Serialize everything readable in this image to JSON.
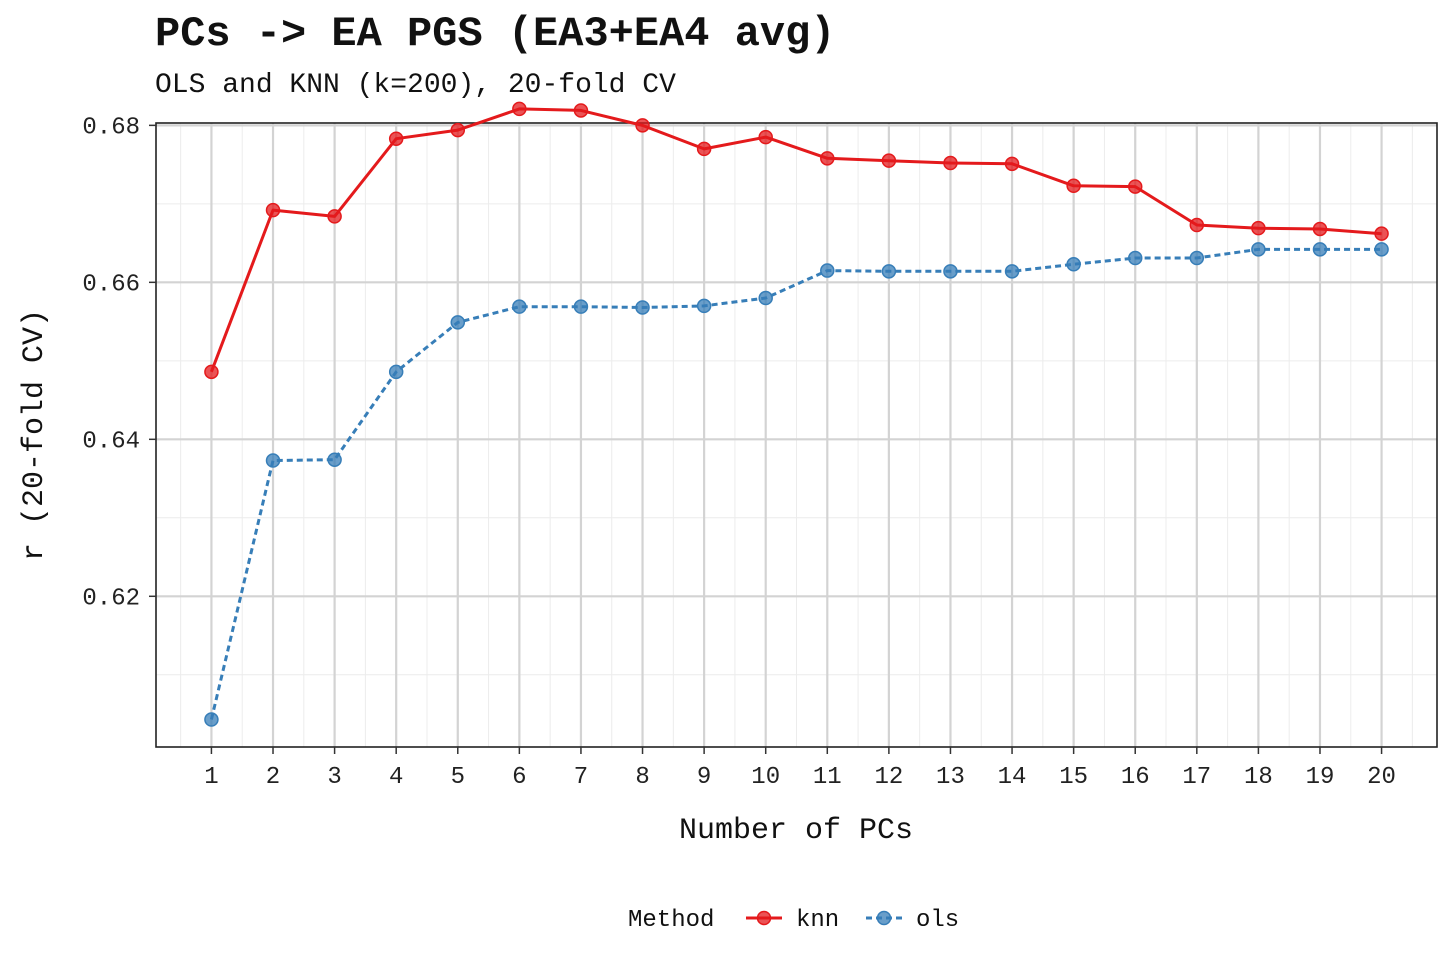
{
  "title": "PCs -> EA PGS (EA3+EA4 avg)",
  "subtitle": "OLS and KNN (k=200), 20-fold CV",
  "chart_data": {
    "type": "line",
    "x": [
      1,
      2,
      3,
      4,
      5,
      6,
      7,
      8,
      9,
      10,
      11,
      12,
      13,
      14,
      15,
      16,
      17,
      18,
      19,
      20
    ],
    "x_tick_labels": [
      "1",
      "2",
      "3",
      "4",
      "5",
      "6",
      "7",
      "8",
      "9",
      "10",
      "11",
      "12",
      "13",
      "14",
      "15",
      "16",
      "17",
      "18",
      "19",
      "20"
    ],
    "xlabel": "Number of PCs",
    "ylabel": "r (20-fold CV)",
    "ylim": [
      0.6008,
      0.6803
    ],
    "y_ticks": [
      0.62,
      0.64,
      0.66,
      0.68
    ],
    "y_tick_labels": [
      "0.62",
      "0.64",
      "0.66",
      "0.68"
    ],
    "grid": true,
    "legend": {
      "title": "Method",
      "placement": "bottom"
    },
    "series": [
      {
        "name": "knn",
        "color": "#e41a1c",
        "line": "solid",
        "values": [
          0.6486,
          0.6692,
          0.6684,
          0.6783,
          0.6794,
          0.6821,
          0.6819,
          0.68,
          0.677,
          0.6785,
          0.6758,
          0.6755,
          0.6752,
          0.6751,
          0.6723,
          0.6722,
          0.6673,
          0.6669,
          0.6668,
          0.6662
        ]
      },
      {
        "name": "ols",
        "color": "#377eb8",
        "line": "dashed",
        "values": [
          0.6043,
          0.6373,
          0.6374,
          0.6486,
          0.6549,
          0.6569,
          0.6569,
          0.6568,
          0.657,
          0.658,
          0.6615,
          0.6614,
          0.6614,
          0.6614,
          0.6623,
          0.6631,
          0.6631,
          0.6642,
          0.6642,
          0.6642
        ]
      }
    ]
  }
}
